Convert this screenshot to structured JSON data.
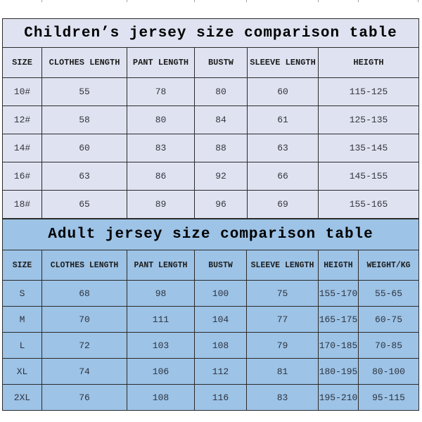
{
  "colors": {
    "page_background": "#ffffff",
    "children_fill": "#dfe3f1",
    "adult_fill": "#9dc3e6",
    "border": "#2b2b2b"
  },
  "children_table": {
    "title": "Children’s jersey size comparison table",
    "headers": [
      "SIZE",
      "CLOTHES LENGTH",
      "PANT LENGTH",
      "BUSTW",
      "SLEEVE LENGTH",
      "HEIGTH"
    ],
    "rows": [
      [
        "10#",
        "55",
        "78",
        "80",
        "60",
        "115-125"
      ],
      [
        "12#",
        "58",
        "80",
        "84",
        "61",
        "125-135"
      ],
      [
        "14#",
        "60",
        "83",
        "88",
        "63",
        "135-145"
      ],
      [
        "16#",
        "63",
        "86",
        "92",
        "66",
        "145-155"
      ],
      [
        "18#",
        "65",
        "89",
        "96",
        "69",
        "155-165"
      ]
    ]
  },
  "adult_table": {
    "title": "Adult jersey size comparison table",
    "headers": [
      "SIZE",
      "CLOTHES LENGTH",
      "PANT LENGTH",
      "BUSTW",
      "SLEEVE LENGTH",
      "HEIGTH",
      "WEIGHT/KG"
    ],
    "rows": [
      [
        "S",
        "68",
        "98",
        "100",
        "75",
        "155-170",
        "55-65"
      ],
      [
        "M",
        "70",
        "111",
        "104",
        "77",
        "165-175",
        "60-75"
      ],
      [
        "L",
        "72",
        "103",
        "108",
        "79",
        "170-185",
        "70-85"
      ],
      [
        "XL",
        "74",
        "106",
        "112",
        "81",
        "180-195",
        "80-100"
      ],
      [
        "2XL",
        "76",
        "108",
        "116",
        "83",
        "195-210",
        "95-115"
      ]
    ]
  }
}
